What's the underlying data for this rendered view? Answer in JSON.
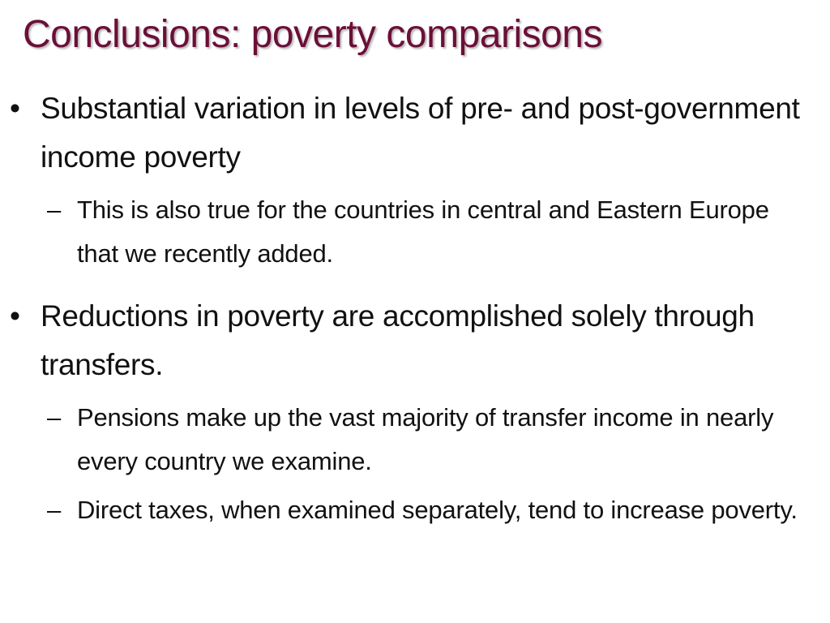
{
  "slide": {
    "title": "Conclusions: poverty comparisons",
    "bullet_marker": "•",
    "sub_marker": "–",
    "bullets": [
      {
        "text": "Substantial variation in levels of pre- and post-government income poverty",
        "subs": [
          "This is also true for the countries in central and Eastern Europe that we recently added."
        ]
      },
      {
        "text": "Reductions in poverty are accomplished solely through transfers.",
        "subs": [
          "Pensions make up the vast majority of transfer income in nearly every country we examine.",
          "Direct taxes, when examined separately, tend to increase poverty."
        ]
      }
    ]
  }
}
